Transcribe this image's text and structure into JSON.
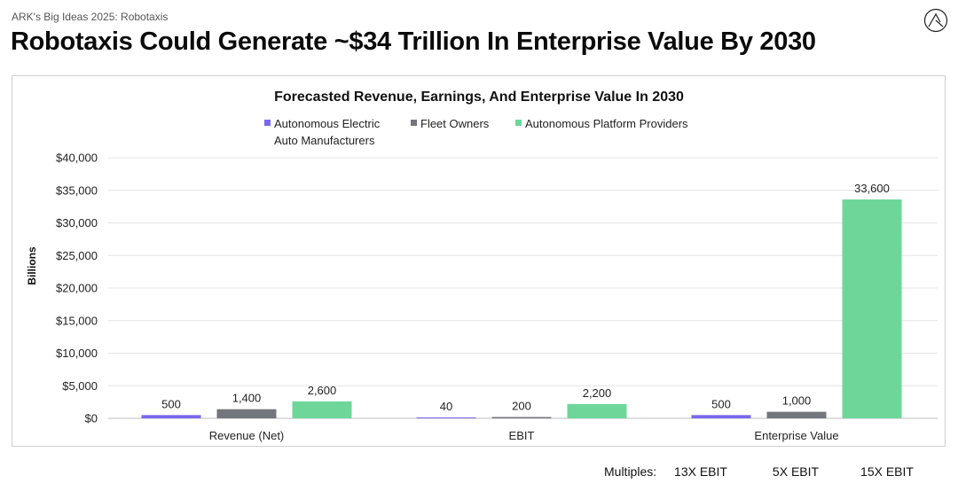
{
  "header": {
    "kicker": "ARK's Big Ideas 2025: Robotaxis",
    "title": "Robotaxis Could Generate ~$34 Trillion In Enterprise Value By 2030",
    "logo_icon": "ark-logo-icon"
  },
  "chart_data": {
    "type": "bar",
    "title": "Forecasted Revenue, Earnings, And Enterprise Value In 2030",
    "ylabel": "Billions",
    "xlabel": "",
    "ylim": [
      0,
      40000
    ],
    "yticks": [
      0,
      5000,
      10000,
      15000,
      20000,
      25000,
      30000,
      35000,
      40000
    ],
    "ytick_labels": [
      "$0",
      "$5,000",
      "$10,000",
      "$15,000",
      "$20,000",
      "$25,000",
      "$30,000",
      "$35,000",
      "$40,000"
    ],
    "categories": [
      "Revenue (Net)",
      "EBIT",
      "Enterprise Value"
    ],
    "grid": true,
    "legend_position": "top",
    "series": [
      {
        "name": "Autonomous Electric Auto Manufacturers",
        "legend_lines": [
          "Autonomous Electric",
          "Auto Manufacturers"
        ],
        "color": "#7B68EE",
        "values": [
          500,
          40,
          500
        ],
        "labels": [
          "500",
          "40",
          "500"
        ]
      },
      {
        "name": "Fleet Owners",
        "legend_lines": [
          "Fleet Owners"
        ],
        "color": "#74767D",
        "values": [
          1400,
          200,
          1000
        ],
        "labels": [
          "1,400",
          "200",
          "1,000"
        ]
      },
      {
        "name": "Autonomous Platform Providers",
        "legend_lines": [
          "Autonomous Platform Providers"
        ],
        "color": "#6FD69A",
        "values": [
          2600,
          2200,
          33600
        ],
        "labels": [
          "2,600",
          "2,200",
          "33,600"
        ]
      }
    ]
  },
  "footer": {
    "multiples_label": "Multiples:",
    "multiples": [
      "13X EBIT",
      "5X EBIT",
      "15X EBIT"
    ]
  }
}
